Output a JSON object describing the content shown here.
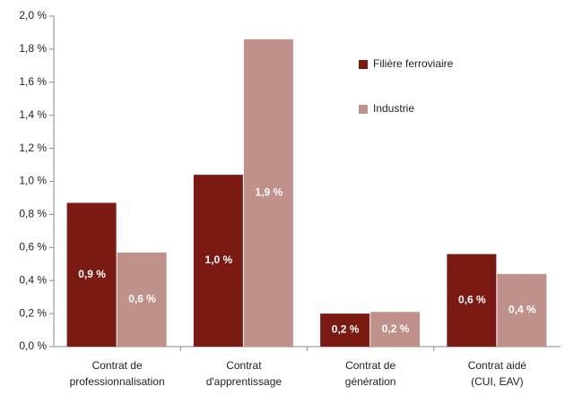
{
  "chart_data": {
    "type": "bar",
    "categories": [
      [
        "Contrat de",
        "professionnalisation"
      ],
      [
        "Contrat",
        "d'apprentissage"
      ],
      [
        "Contrat de",
        "génération"
      ],
      [
        "Contrat aidé",
        "(CUI, EAV)"
      ]
    ],
    "series": [
      {
        "name": "Filière ferroviaire",
        "color": "#7b1a12",
        "values": [
          0.87,
          1.04,
          0.2,
          0.56
        ],
        "value_labels": [
          "0,9 %",
          "1,0 %",
          "0,2 %",
          "0,6 %"
        ]
      },
      {
        "name": "Industrie",
        "color": "#c0918a",
        "values": [
          0.57,
          1.86,
          0.21,
          0.44
        ],
        "value_labels": [
          "0,6 %",
          "1,9 %",
          "0,2 %",
          "0,4 %"
        ]
      }
    ],
    "ylim": [
      0,
      2.0
    ],
    "yticks": [
      {
        "value": 0,
        "label": "0,0 %"
      },
      {
        "value": 0.2,
        "label": "0,2 %"
      },
      {
        "value": 0.4,
        "label": "0,4 %"
      },
      {
        "value": 0.6,
        "label": "0,6 %"
      },
      {
        "value": 0.8,
        "label": "0,8 %"
      },
      {
        "value": 1.0,
        "label": "1,0 %"
      },
      {
        "value": 1.2,
        "label": "1,2 %"
      },
      {
        "value": 1.4,
        "label": "1,4 %"
      },
      {
        "value": 1.6,
        "label": "1,6 %"
      },
      {
        "value": 1.8,
        "label": "1,8 %"
      },
      {
        "value": 2.0,
        "label": "2,0 %"
      }
    ],
    "grid": false,
    "legend": "upper right"
  }
}
